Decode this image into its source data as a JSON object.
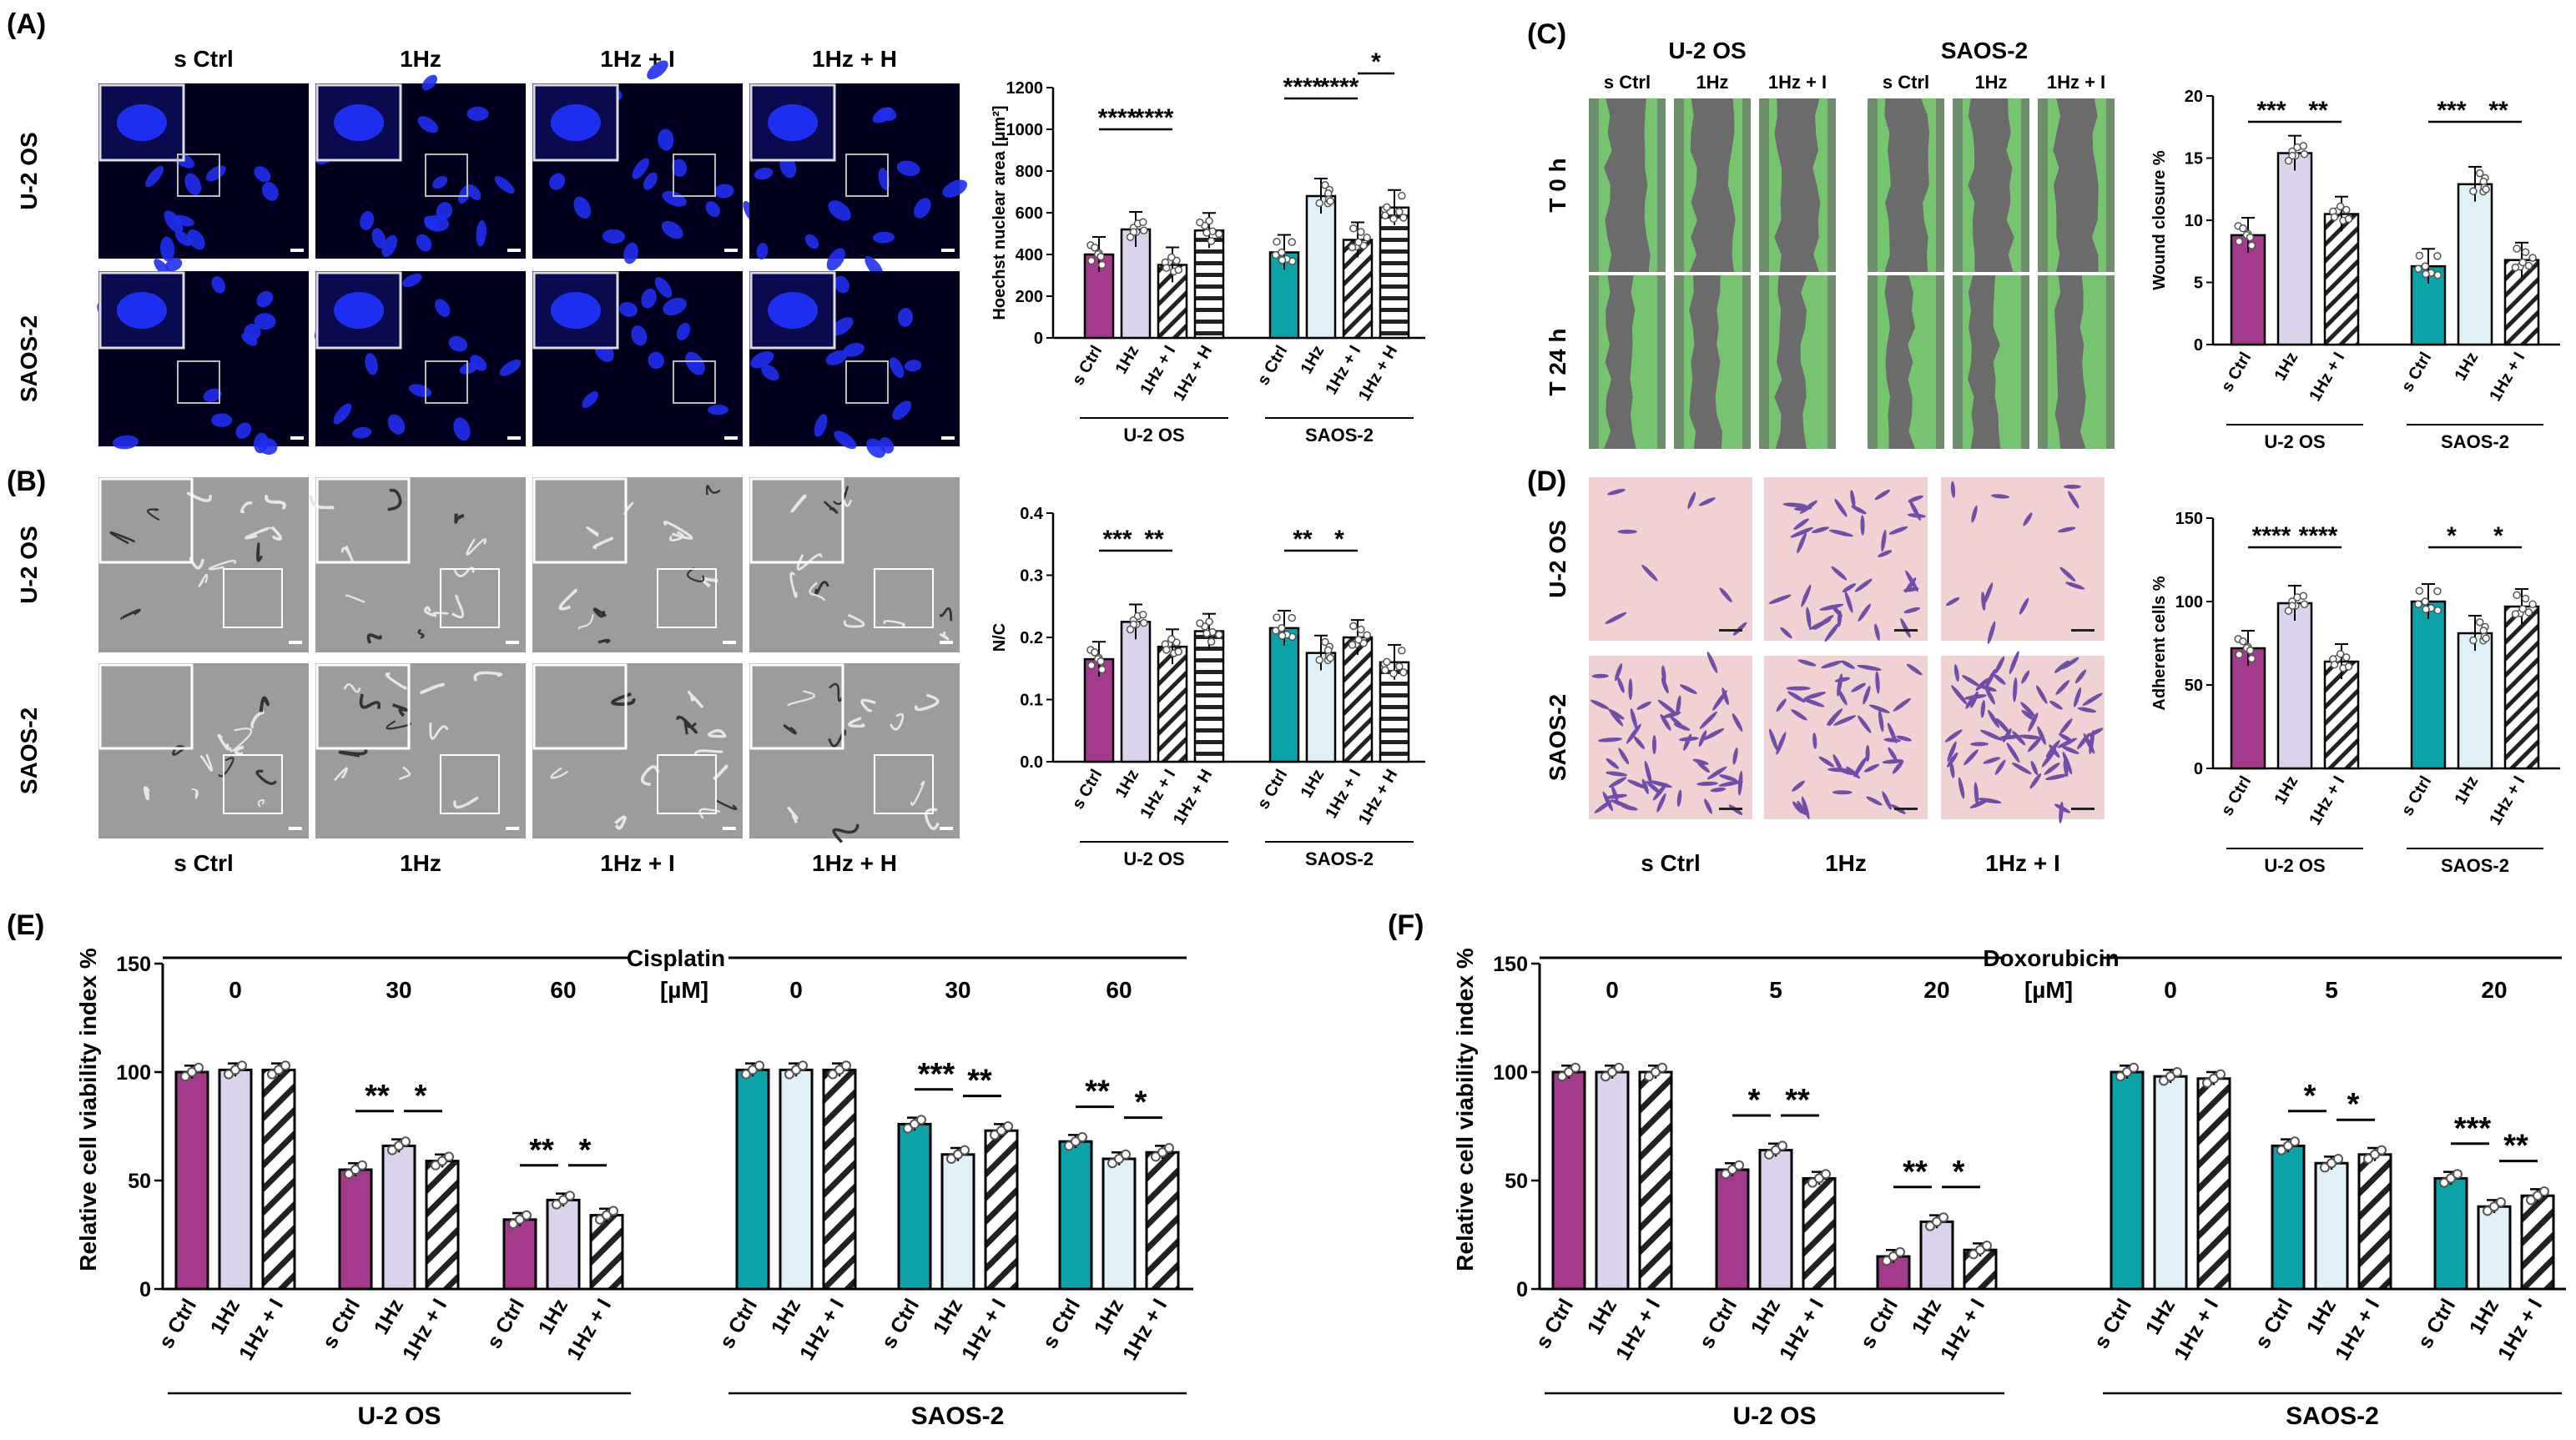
{
  "colors": {
    "magenta": "#a43a8c",
    "lavender": "#ddd2ec",
    "teal": "#0ba3a8",
    "paleblue": "#dff1f6",
    "nucleus_bg": "#00001e",
    "nucleus": "#1f2ff0",
    "sem_bg": "#9c9c9c",
    "wound_green": "#76c46f",
    "wound_gray": "#6b6b6b",
    "crystal_pink": "#f1d2d4",
    "crystal_purple": "#6d4ea8"
  },
  "panels": {
    "A": {
      "label": "(A)",
      "columns": [
        "s Ctrl",
        "1Hz",
        "1Hz + I",
        "1Hz + H"
      ],
      "rows": [
        "U-2 OS",
        "SAOS-2"
      ]
    },
    "B": {
      "label": "(B)",
      "columns": [
        "s Ctrl",
        "1Hz",
        "1Hz + I",
        "1Hz + H"
      ],
      "rows": [
        "U-2 OS",
        "SAOS-2"
      ]
    },
    "C": {
      "label": "(C)",
      "cell_lines": [
        "U-2 OS",
        "SAOS-2"
      ],
      "columns": [
        "s Ctrl",
        "1Hz",
        "1Hz + I",
        "s Ctrl",
        "1Hz",
        "1Hz + I"
      ],
      "rows": [
        "T 0 h",
        "T 24 h"
      ]
    },
    "D": {
      "label": "(D)",
      "columns": [
        "s Ctrl",
        "1Hz",
        "1Hz + I"
      ],
      "rows": [
        "U-2 OS",
        "SAOS-2"
      ]
    },
    "E": {
      "label": "(E)"
    },
    "F": {
      "label": "(F)"
    }
  },
  "chart_data": [
    {
      "id": "A",
      "type": "bar",
      "ylabel": "Hoechst nuclear area [µm²]",
      "ylim": [
        0,
        1200
      ],
      "yticks": [
        "0",
        "200",
        "400",
        "600",
        "800",
        "1000",
        "1200"
      ],
      "groups": [
        "U-2 OS",
        "SAOS-2"
      ],
      "categories": [
        "s Ctrl",
        "1Hz",
        "1Hz + I",
        "1Hz + H"
      ],
      "series": [
        {
          "group": "U-2 OS",
          "values": [
            400,
            520,
            350,
            515
          ]
        },
        {
          "group": "SAOS-2",
          "values": [
            410,
            680,
            470,
            625
          ]
        }
      ],
      "significance": [
        {
          "group": "U-2 OS",
          "pair": [
            0,
            1
          ],
          "label": "****"
        },
        {
          "group": "U-2 OS",
          "pair": [
            1,
            2
          ],
          "label": "****"
        },
        {
          "group": "SAOS-2",
          "pair": [
            0,
            1
          ],
          "label": "****"
        },
        {
          "group": "SAOS-2",
          "pair": [
            1,
            2
          ],
          "label": "****"
        },
        {
          "group": "SAOS-2",
          "pair": [
            2,
            3
          ],
          "label": "*"
        }
      ]
    },
    {
      "id": "B",
      "type": "bar",
      "ylabel": "N/C",
      "ylim": [
        0,
        0.4
      ],
      "yticks": [
        "0.0",
        "0.1",
        "0.2",
        "0.3",
        "0.4"
      ],
      "groups": [
        "U-2 OS",
        "SAOS-2"
      ],
      "categories": [
        "s Ctrl",
        "1Hz",
        "1Hz + I",
        "1Hz + H"
      ],
      "series": [
        {
          "group": "U-2 OS",
          "values": [
            0.165,
            0.225,
            0.185,
            0.21
          ]
        },
        {
          "group": "SAOS-2",
          "values": [
            0.215,
            0.175,
            0.2,
            0.16
          ]
        }
      ],
      "significance": [
        {
          "group": "U-2 OS",
          "pair": [
            0,
            1
          ],
          "label": "***"
        },
        {
          "group": "U-2 OS",
          "pair": [
            1,
            2
          ],
          "label": "**"
        },
        {
          "group": "SAOS-2",
          "pair": [
            0,
            1
          ],
          "label": "**"
        },
        {
          "group": "SAOS-2",
          "pair": [
            1,
            2
          ],
          "label": "*"
        }
      ]
    },
    {
      "id": "C",
      "type": "bar",
      "ylabel": "Wound closure %",
      "ylim": [
        0,
        20
      ],
      "yticks": [
        "0",
        "5",
        "10",
        "15",
        "20"
      ],
      "groups": [
        "U-2 OS",
        "SAOS-2"
      ],
      "categories": [
        "s Ctrl",
        "1Hz",
        "1Hz + I"
      ],
      "series": [
        {
          "group": "U-2 OS",
          "values": [
            8.8,
            15.4,
            10.5
          ]
        },
        {
          "group": "SAOS-2",
          "values": [
            6.3,
            12.9,
            6.8
          ]
        }
      ],
      "significance": [
        {
          "group": "U-2 OS",
          "pair": [
            0,
            1
          ],
          "label": "***"
        },
        {
          "group": "U-2 OS",
          "pair": [
            1,
            2
          ],
          "label": "**"
        },
        {
          "group": "SAOS-2",
          "pair": [
            0,
            1
          ],
          "label": "***"
        },
        {
          "group": "SAOS-2",
          "pair": [
            1,
            2
          ],
          "label": "**"
        }
      ]
    },
    {
      "id": "D",
      "type": "bar",
      "ylabel": "Adherent cells %",
      "ylim": [
        0,
        150
      ],
      "yticks": [
        "0",
        "50",
        "100",
        "150"
      ],
      "groups": [
        "U-2 OS",
        "SAOS-2"
      ],
      "categories": [
        "s Ctrl",
        "1Hz",
        "1Hz + I"
      ],
      "series": [
        {
          "group": "U-2 OS",
          "values": [
            72,
            99,
            64
          ]
        },
        {
          "group": "SAOS-2",
          "values": [
            100,
            81,
            97
          ]
        }
      ],
      "significance": [
        {
          "group": "U-2 OS",
          "pair": [
            0,
            1
          ],
          "label": "****"
        },
        {
          "group": "U-2 OS",
          "pair": [
            1,
            2
          ],
          "label": "****"
        },
        {
          "group": "SAOS-2",
          "pair": [
            0,
            1
          ],
          "label": "*"
        },
        {
          "group": "SAOS-2",
          "pair": [
            1,
            2
          ],
          "label": "*"
        }
      ]
    },
    {
      "id": "E",
      "type": "bar",
      "title": "Cisplatin",
      "unit": "[µM]",
      "ylabel": "Relative cell viability index %",
      "ylim": [
        0,
        150
      ],
      "yticks": [
        "0",
        "50",
        "100",
        "150"
      ],
      "groups": [
        "U-2 OS",
        "SAOS-2"
      ],
      "concentrations": [
        "0",
        "30",
        "60"
      ],
      "categories": [
        "s Ctrl",
        "1Hz",
        "1Hz + I"
      ],
      "series": [
        {
          "group": "U-2 OS",
          "conc": "0",
          "values": [
            100,
            101,
            101
          ]
        },
        {
          "group": "U-2 OS",
          "conc": "30",
          "values": [
            55,
            66,
            59
          ]
        },
        {
          "group": "U-2 OS",
          "conc": "60",
          "values": [
            32,
            41,
            34
          ]
        },
        {
          "group": "SAOS-2",
          "conc": "0",
          "values": [
            101,
            101,
            101
          ]
        },
        {
          "group": "SAOS-2",
          "conc": "30",
          "values": [
            76,
            62,
            73
          ]
        },
        {
          "group": "SAOS-2",
          "conc": "60",
          "values": [
            68,
            60,
            63
          ]
        }
      ],
      "significance": [
        {
          "block": 1,
          "pair": [
            0,
            1
          ],
          "label": "**"
        },
        {
          "block": 1,
          "pair": [
            1,
            2
          ],
          "label": "*"
        },
        {
          "block": 2,
          "pair": [
            0,
            1
          ],
          "label": "**"
        },
        {
          "block": 2,
          "pair": [
            1,
            2
          ],
          "label": "*"
        },
        {
          "block": 4,
          "pair": [
            0,
            1
          ],
          "label": "***"
        },
        {
          "block": 4,
          "pair": [
            1,
            2
          ],
          "label": "**"
        },
        {
          "block": 5,
          "pair": [
            0,
            1
          ],
          "label": "**"
        },
        {
          "block": 5,
          "pair": [
            1,
            2
          ],
          "label": "*"
        }
      ]
    },
    {
      "id": "F",
      "type": "bar",
      "title": "Doxorubicin",
      "unit": "[µM]",
      "ylabel": "Relative cell viability index %",
      "ylim": [
        0,
        150
      ],
      "yticks": [
        "0",
        "50",
        "100",
        "150"
      ],
      "groups": [
        "U-2 OS",
        "SAOS-2"
      ],
      "concentrations": [
        "0",
        "5",
        "20"
      ],
      "categories": [
        "s Ctrl",
        "1Hz",
        "1Hz + I"
      ],
      "series": [
        {
          "group": "U-2 OS",
          "conc": "0",
          "values": [
            100,
            100,
            100
          ]
        },
        {
          "group": "U-2 OS",
          "conc": "5",
          "values": [
            55,
            64,
            51
          ]
        },
        {
          "group": "U-2 OS",
          "conc": "20",
          "values": [
            15,
            31,
            18
          ]
        },
        {
          "group": "SAOS-2",
          "conc": "0",
          "values": [
            100,
            98,
            97
          ]
        },
        {
          "group": "SAOS-2",
          "conc": "5",
          "values": [
            66,
            58,
            62
          ]
        },
        {
          "group": "SAOS-2",
          "conc": "20",
          "values": [
            51,
            38,
            43
          ]
        }
      ],
      "significance": [
        {
          "block": 1,
          "pair": [
            0,
            1
          ],
          "label": "*"
        },
        {
          "block": 1,
          "pair": [
            1,
            2
          ],
          "label": "**"
        },
        {
          "block": 2,
          "pair": [
            0,
            1
          ],
          "label": "**"
        },
        {
          "block": 2,
          "pair": [
            1,
            2
          ],
          "label": "*"
        },
        {
          "block": 4,
          "pair": [
            0,
            1
          ],
          "label": "*"
        },
        {
          "block": 4,
          "pair": [
            1,
            2
          ],
          "label": "*"
        },
        {
          "block": 5,
          "pair": [
            0,
            1
          ],
          "label": "***"
        },
        {
          "block": 5,
          "pair": [
            1,
            2
          ],
          "label": "**"
        }
      ]
    }
  ]
}
